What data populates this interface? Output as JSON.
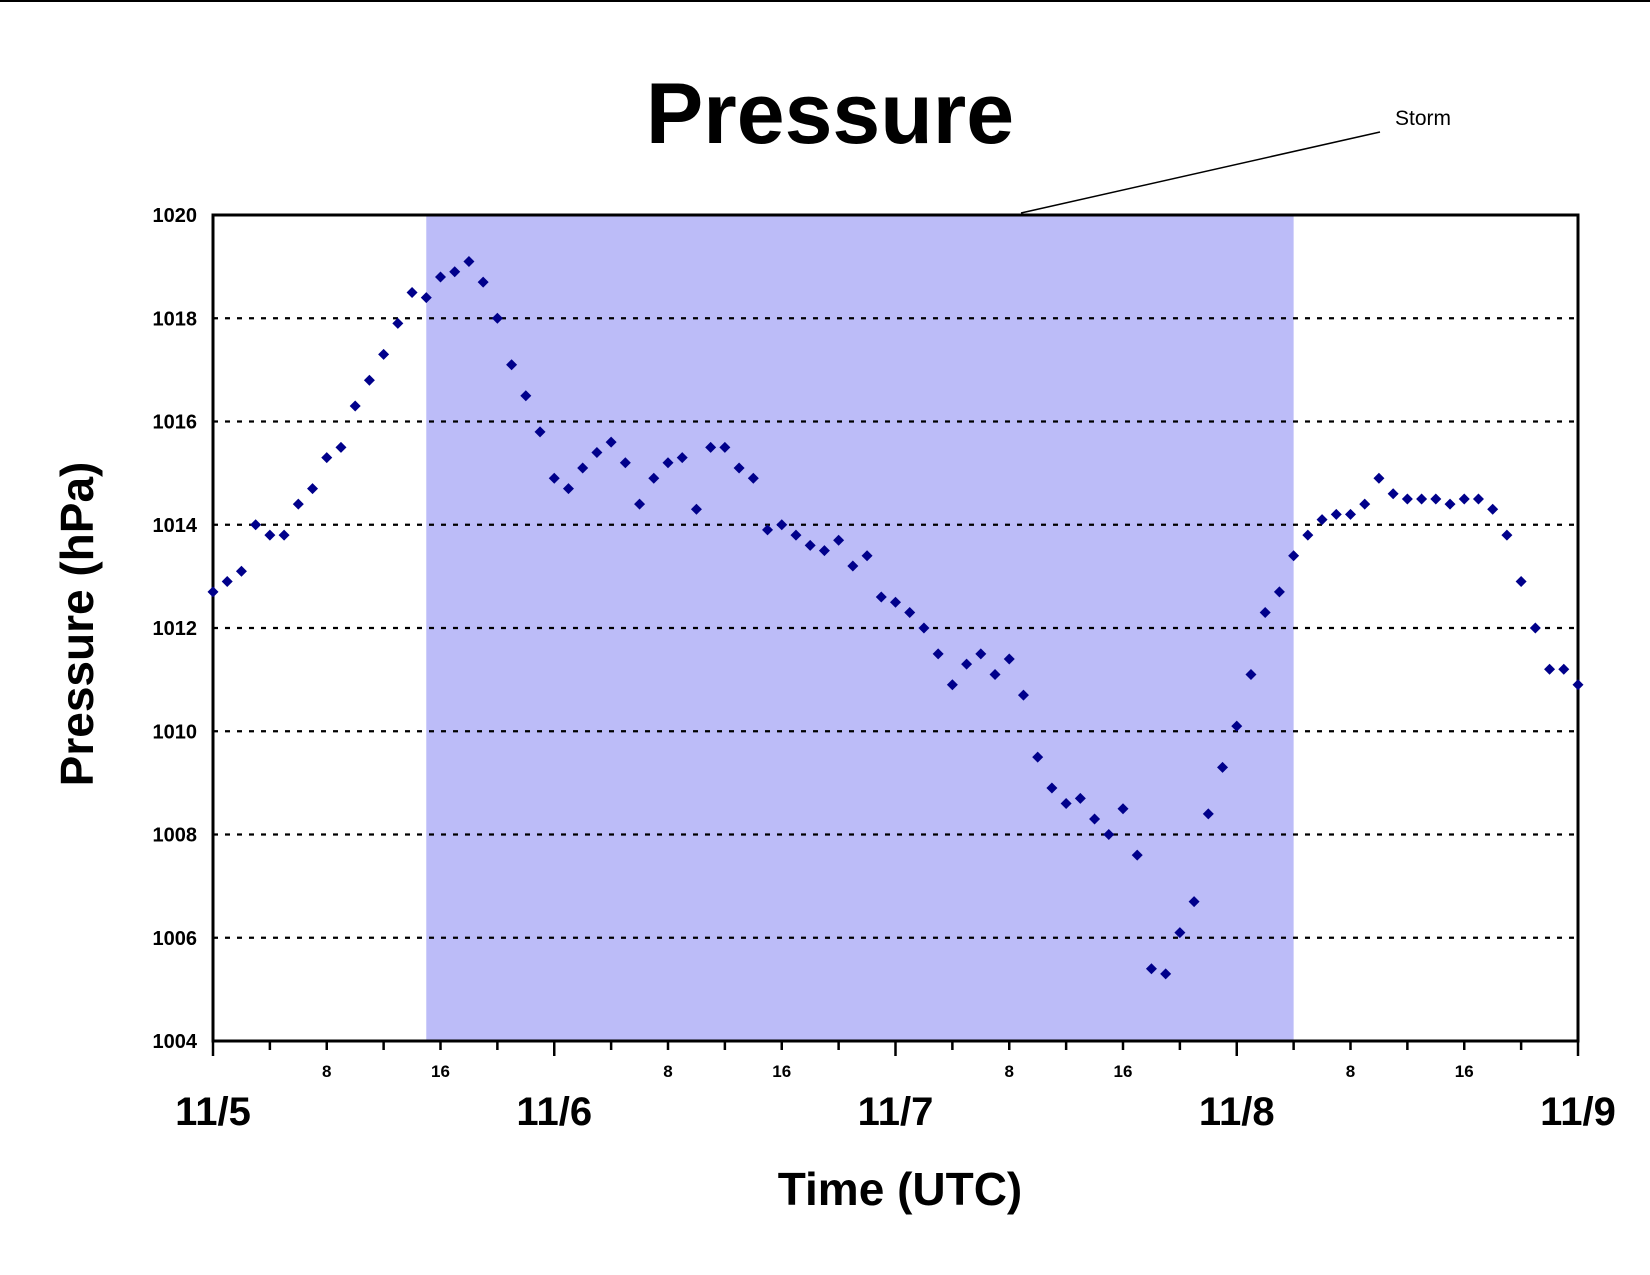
{
  "chart_data": {
    "type": "scatter",
    "title": "Pressure",
    "xlabel": "Time (UTC)",
    "ylabel": "Pressure (hPa)",
    "ylim": [
      1004,
      1020
    ],
    "yticks": [
      "1004",
      "1006",
      "1008",
      "1010",
      "1012",
      "1014",
      "1016",
      "1018",
      "1020"
    ],
    "xlim_hours": [
      0,
      96
    ],
    "day_ticks": [
      {
        "label": "11/5",
        "hour": 0
      },
      {
        "label": "11/6",
        "hour": 24
      },
      {
        "label": "11/7",
        "hour": 48
      },
      {
        "label": "11/8",
        "hour": 72
      },
      {
        "label": "11/9",
        "hour": 96
      }
    ],
    "hour_ticks": [
      {
        "label": "8",
        "hour": 8
      },
      {
        "label": "16",
        "hour": 16
      },
      {
        "label": "8",
        "hour": 32
      },
      {
        "label": "16",
        "hour": 40
      },
      {
        "label": "8",
        "hour": 56
      },
      {
        "label": "16",
        "hour": 64
      },
      {
        "label": "8",
        "hour": 80
      },
      {
        "label": "16",
        "hour": 88
      }
    ],
    "minor_tick_step_hours": 4,
    "grid": "horizontal dotted",
    "annotation": {
      "text": "Storm",
      "hour_start": 15,
      "hour_end": 76,
      "color": "#bcbcf8"
    },
    "marker_color": "#00008b",
    "series": [
      {
        "x": [
          0,
          1,
          2,
          3,
          4,
          5,
          6,
          7,
          8,
          9,
          10,
          11,
          12,
          13,
          14,
          15,
          16,
          17,
          18,
          19,
          20,
          21,
          22,
          23,
          24,
          25,
          26,
          27,
          28,
          29,
          30,
          31,
          32,
          33,
          34,
          35,
          36,
          37,
          38,
          39,
          40,
          41,
          42,
          43,
          44,
          45,
          46,
          47,
          48,
          49,
          50,
          51,
          52,
          53,
          54,
          55,
          56,
          57,
          58,
          59,
          60,
          61,
          62,
          63,
          64,
          65,
          66,
          67,
          68,
          69,
          70,
          71,
          72,
          73,
          74,
          75,
          76,
          77,
          78,
          79,
          80,
          81,
          82,
          83,
          84,
          85,
          86,
          87,
          88,
          89,
          90,
          91,
          92,
          93,
          94,
          95,
          96
        ],
        "y": [
          1012.7,
          1012.9,
          1013.1,
          1014.0,
          1013.8,
          1013.8,
          1014.4,
          1014.7,
          1015.3,
          1015.5,
          1016.3,
          1016.8,
          1017.3,
          1017.9,
          1018.5,
          1018.4,
          1018.8,
          1018.9,
          1019.1,
          1018.7,
          1018.0,
          1017.1,
          1016.5,
          1015.8,
          1014.9,
          1014.7,
          1015.1,
          1015.4,
          1015.6,
          1015.2,
          1014.4,
          1014.9,
          1015.2,
          1015.3,
          1014.3,
          1015.5,
          1015.5,
          1015.1,
          1014.9,
          1013.9,
          1014.0,
          1013.8,
          1013.6,
          1013.5,
          1013.7,
          1013.2,
          1013.4,
          1012.6,
          1012.5,
          1012.3,
          1012.0,
          1011.5,
          1010.9,
          1011.3,
          1011.5,
          1011.1,
          1011.4,
          1010.7,
          1009.5,
          1008.9,
          1008.6,
          1008.7,
          1008.3,
          1008.0,
          1008.5,
          1007.6,
          1005.4,
          1005.3,
          1006.1,
          1006.7,
          1008.4,
          1009.3,
          1010.1,
          1011.1,
          1012.3,
          1012.7,
          1013.4,
          1013.8,
          1014.1,
          1014.2,
          1014.2,
          1014.4,
          1014.9,
          1014.6,
          1014.5,
          1014.5,
          1014.5,
          1014.4,
          1014.5,
          1014.5,
          1014.3,
          1013.8,
          1012.9,
          1012.0,
          1011.2,
          1011.2,
          1010.9
        ]
      }
    ]
  }
}
